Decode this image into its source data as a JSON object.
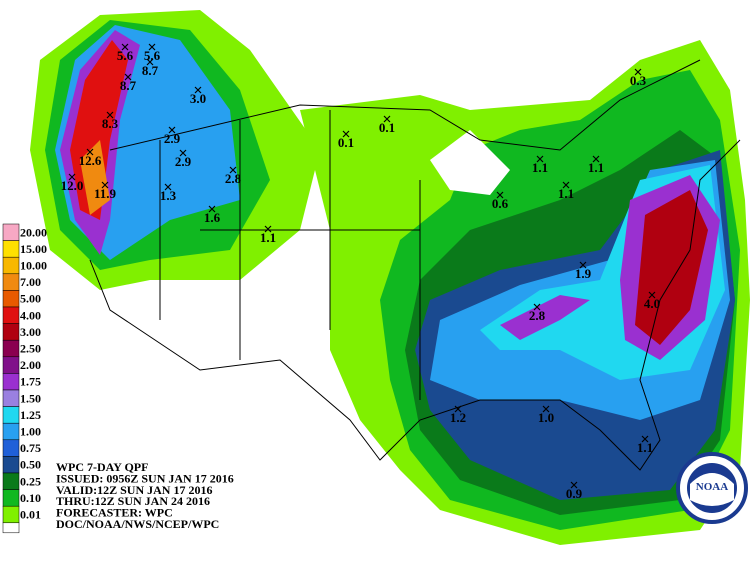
{
  "header": {
    "lines": [
      "WPC 7-DAY QPF",
      "ISSUED: 0956Z SUN JAN 17 2016",
      "VALID:12Z SUN JAN 17 2016",
      "THRU:12Z SUN JAN 24 2016",
      "FORECASTER: WPC",
      "DOC/NOAA/NWS/NCEP/WPC"
    ]
  },
  "legend": [
    {
      "label": "20.00",
      "color": "#f7a8c4"
    },
    {
      "label": "15.00",
      "color": "#ffe000"
    },
    {
      "label": "10.00",
      "color": "#f8b800"
    },
    {
      "label": "7.00",
      "color": "#f08a10"
    },
    {
      "label": "5.00",
      "color": "#e85a00"
    },
    {
      "label": "4.00",
      "color": "#e01010"
    },
    {
      "label": "3.00",
      "color": "#b00010"
    },
    {
      "label": "2.50",
      "color": "#8a0050"
    },
    {
      "label": "2.00",
      "color": "#80108a"
    },
    {
      "label": "1.75",
      "color": "#9a30d0"
    },
    {
      "label": "1.50",
      "color": "#9a80e0"
    },
    {
      "label": "1.25",
      "color": "#20d8f0"
    },
    {
      "label": "1.00",
      "color": "#28a0f0"
    },
    {
      "label": "0.75",
      "color": "#2060d8"
    },
    {
      "label": "0.50",
      "color": "#1a4a90"
    },
    {
      "label": "0.25",
      "color": "#0a7a1a"
    },
    {
      "label": "0.10",
      "color": "#10b820"
    },
    {
      "label": "0.01",
      "color": "#80f000"
    }
  ],
  "points": [
    "5.6",
    "5.6",
    "8.7",
    "8.7",
    "8.3",
    "12.6",
    "12.0",
    "11.9",
    "3.0",
    "2.9",
    "2.9",
    "2.8",
    "1.3",
    "1.6",
    "1.1",
    "0.1",
    "0.1",
    "0.3",
    "1.1",
    "1.1",
    "1.1",
    "0.6",
    "1.9",
    "2.8",
    "4.0",
    "1.2",
    "1.0",
    "1.1",
    "0.9"
  ],
  "logo": "NOAA"
}
